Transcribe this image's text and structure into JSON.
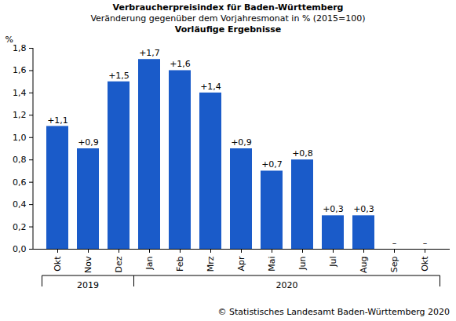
{
  "chart_data": {
    "type": "bar",
    "title": "Verbraucherpreisindex für Baden-Württemberg",
    "subtitle": "Veränderung gegenüber dem Vorjahresmonat in % (2015=100)",
    "subtitle2": "Vorläufige Ergebnisse",
    "ylabel": "%",
    "source": "© Statistisches Landesamt Baden-Württemberg 2020",
    "categories": [
      "Okt",
      "Nov",
      "Dez",
      "Jan",
      "Feb",
      "Mrz",
      "Apr",
      "Mai",
      "Jun",
      "Jul",
      "Aug",
      "Sep",
      "Okt"
    ],
    "values": [
      1.1,
      0.9,
      1.5,
      1.7,
      1.6,
      1.4,
      0.9,
      0.7,
      0.8,
      0.3,
      0.3,
      null,
      null
    ],
    "value_labels": [
      "+1,1",
      "+0,9",
      "+1,5",
      "+1,7",
      "+1,6",
      "+1,4",
      "+0,9",
      "+0,7",
      "+0,8",
      "+0,3",
      "+0,3",
      "–",
      "–"
    ],
    "year_groups": [
      {
        "label": "2019",
        "start": 0,
        "end": 2
      },
      {
        "label": "2020",
        "start": 3,
        "end": 12
      }
    ],
    "color": "#1a5bc9",
    "ylim": [
      0,
      1.8
    ],
    "yticks": [
      {
        "value": 0,
        "label": "0,0"
      },
      {
        "value": 0.2,
        "label": "0,2"
      },
      {
        "value": 0.4,
        "label": "0,4"
      },
      {
        "value": 0.6,
        "label": "0,6"
      },
      {
        "value": 0.8,
        "label": "0,8"
      },
      {
        "value": 1.0,
        "label": "1,0"
      },
      {
        "value": 1.2,
        "label": "1,2"
      },
      {
        "value": 1.4,
        "label": "1,4"
      },
      {
        "value": 1.6,
        "label": "1,6"
      },
      {
        "value": 1.8,
        "label": "1,8"
      }
    ],
    "grid": false,
    "data_labels": true
  }
}
